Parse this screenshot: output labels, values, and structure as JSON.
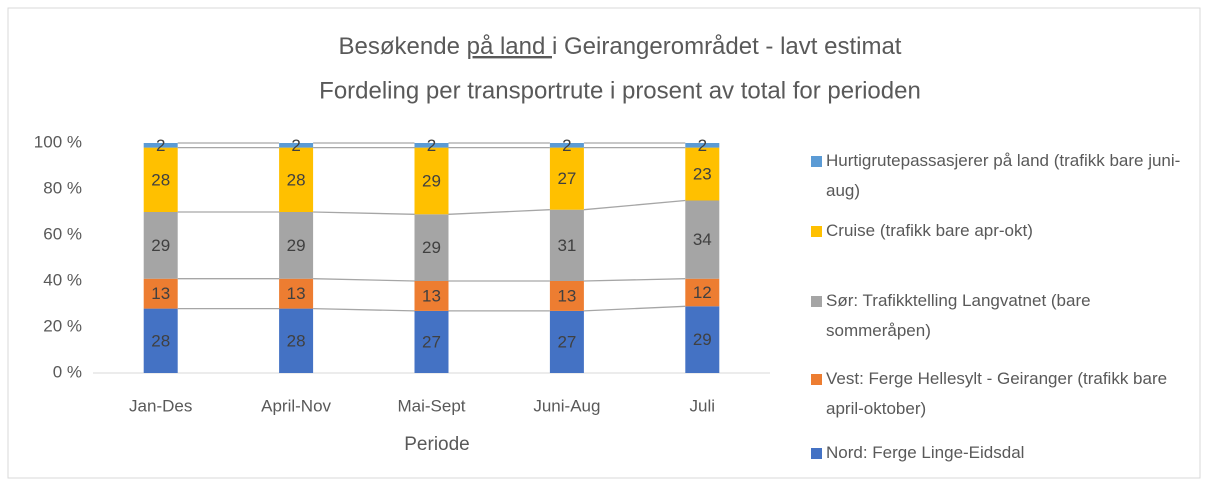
{
  "chart_data": {
    "type": "bar",
    "stacked": true,
    "title": [
      "Besøkende ",
      "på land ",
      "i Geirangerområdet - lavt estimat"
    ],
    "subtitle": "Fordeling per transportrute i prosent av total for perioden",
    "x_label": "Periode",
    "categories": [
      "Jan-Des",
      "April-Nov",
      "Mai-Sept",
      "Juni-Aug",
      "Juli"
    ],
    "series": [
      {
        "name": "Nord: Ferge Linge-Eidsdal",
        "color": "#4472c4",
        "values": [
          28,
          28,
          27,
          27,
          29
        ]
      },
      {
        "name": "Vest: Ferge Hellesylt - Geiranger (trafikk bare april-oktober)",
        "color": "#ed7d31",
        "values": [
          13,
          13,
          13,
          13,
          12
        ]
      },
      {
        "name": "Sør: Trafikktelling Langvatnet (bare sommeråpen)",
        "color": "#a5a5a5",
        "values": [
          29,
          29,
          29,
          31,
          34
        ]
      },
      {
        "name": "Cruise (trafikk bare apr-okt)",
        "color": "#ffc000",
        "values": [
          28,
          28,
          29,
          27,
          23
        ]
      },
      {
        "name": "Hurtigrutepassasjerer på land (trafikk bare juni-aug)",
        "color": "#5b9bd5",
        "values": [
          2,
          2,
          2,
          2,
          2
        ]
      }
    ],
    "ylim": [
      0,
      100
    ],
    "yticks": [
      {
        "value": 0,
        "label": "0 %"
      },
      {
        "value": 20,
        "label": "20 %"
      },
      {
        "value": 40,
        "label": "40 %"
      },
      {
        "value": 60,
        "label": "60 %"
      },
      {
        "value": 80,
        "label": "80 %"
      },
      {
        "value": 100,
        "label": "100 %"
      }
    ],
    "legend": "right"
  }
}
